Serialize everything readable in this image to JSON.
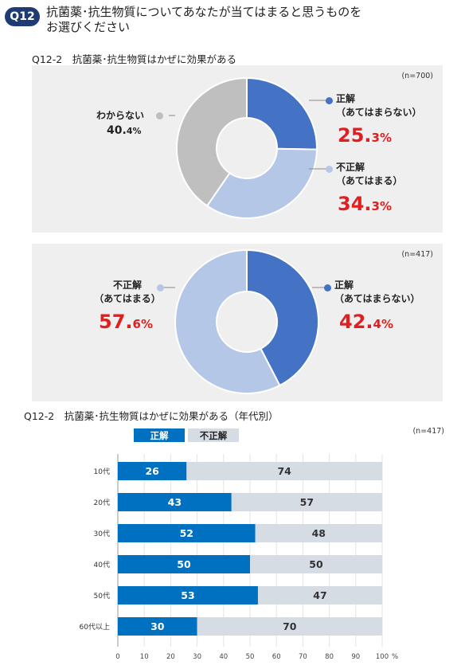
{
  "header": {
    "badge": "Q12",
    "question_line1": "抗菌薬･抗生物質についてあなたが当てはまると思うものを",
    "question_line2": "お選びください"
  },
  "section1": {
    "title": "Q12-2　抗菌薬･抗生物質はかぜに効果がある"
  },
  "section2": {
    "title": "Q12-2　抗菌薬･抗生物質はかぜに効果がある（年代別）"
  },
  "colors": {
    "correct": "#4472c4",
    "incorrect": "#b4c7e7",
    "unknown": "#bfbfbf",
    "percent": "#e02020",
    "bar_correct": "#0070c0",
    "bar_incorrect": "#d6dce4"
  },
  "chart_data": [
    {
      "type": "pie",
      "donut": true,
      "n_label": "(n=700)",
      "slices": [
        {
          "name": "正解",
          "note": "（あてはまらない）",
          "value": 25.3,
          "int": "25.",
          "frac": "3%",
          "color": "#4472c4"
        },
        {
          "name": "不正解",
          "note": "（あてはまる）",
          "value": 34.3,
          "int": "34.",
          "frac": "3%",
          "color": "#b4c7e7"
        },
        {
          "name": "わからない",
          "note": "",
          "value": 40.4,
          "int": "40.",
          "frac": "4%",
          "color": "#bfbfbf"
        }
      ]
    },
    {
      "type": "pie",
      "donut": true,
      "n_label": "(n=417)",
      "slices": [
        {
          "name": "正解",
          "note": "（あてはまらない）",
          "value": 42.4,
          "int": "42.",
          "frac": "4%",
          "color": "#4472c4"
        },
        {
          "name": "不正解",
          "note": "（あてはまる）",
          "value": 57.6,
          "int": "57.",
          "frac": "6%",
          "color": "#b4c7e7"
        }
      ]
    },
    {
      "type": "bar",
      "orientation": "horizontal",
      "stacked": true,
      "n_label": "(n=417)",
      "legend": [
        "正解",
        "不正解"
      ],
      "categories": [
        "10代",
        "20代",
        "30代",
        "40代",
        "50代",
        "60代以上"
      ],
      "series": [
        {
          "name": "正解",
          "values": [
            26,
            43,
            52,
            50,
            53,
            30
          ],
          "color": "#0070c0"
        },
        {
          "name": "不正解",
          "values": [
            74,
            57,
            48,
            50,
            47,
            70
          ],
          "color": "#d6dce4"
        }
      ],
      "xlim": [
        0,
        100
      ],
      "xticks": [
        "0",
        "10",
        "20",
        "30",
        "40",
        "50",
        "60",
        "70",
        "80",
        "90",
        "100"
      ],
      "x_unit": "%"
    }
  ]
}
